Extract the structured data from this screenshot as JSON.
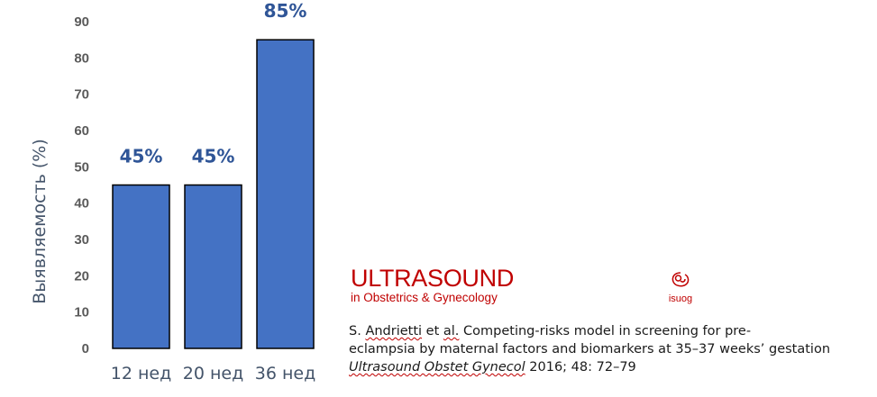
{
  "chart_data": {
    "type": "bar",
    "categories": [
      "12 нед",
      "20 нед",
      "36 нед"
    ],
    "values": [
      45,
      45,
      85
    ],
    "data_labels": [
      "45%",
      "45%",
      "85%"
    ],
    "ylabel": "Выявляемость (%)",
    "xlabel": "",
    "ylim": [
      0,
      90
    ],
    "yticks": [
      0,
      10,
      20,
      30,
      40,
      50,
      60,
      70,
      80,
      90
    ],
    "grid": false,
    "bar_color": "#4472c4",
    "bar_edge_color": "#000000",
    "label_color": "#2f5597"
  },
  "journal": {
    "title": "ULTRASOUND",
    "subtitle": "in Obstetrics & Gynecology",
    "society": "isuog",
    "brand_color": "#c00000",
    "icon": "fetus-logo-icon"
  },
  "citation": {
    "author_pre": "S. ",
    "author_u1": "Andrietti",
    "author_mid": " et ",
    "author_u2": "al.",
    "line1_rest": " Competing-risks model in screening for pre-",
    "line2": "eclampsia by maternal factors and biomarkers at 35–37 weeks’ gestation",
    "journal_italic": "Ultrasound Obstet Gynecol",
    "journal_rest": " 2016; 48: 72–79"
  }
}
